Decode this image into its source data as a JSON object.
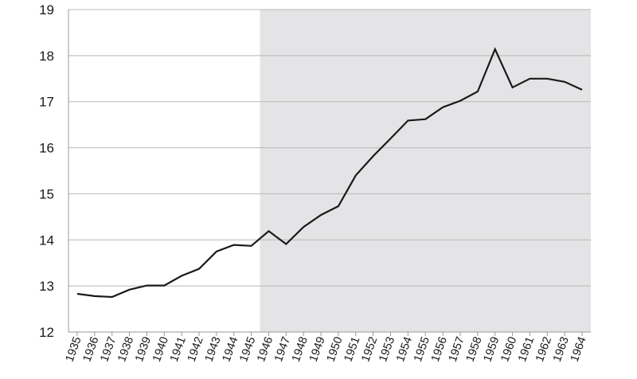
{
  "chart_data": {
    "type": "line",
    "title": "",
    "xlabel": "",
    "ylabel": "",
    "ylim": [
      12,
      19
    ],
    "yticks": [
      12,
      13,
      14,
      15,
      16,
      17,
      18,
      19
    ],
    "grid": "horizontal",
    "shaded_region": {
      "from": "1946",
      "to": "1964",
      "color": "#e4e4e6"
    },
    "line_color": "#1a1a1a",
    "categories": [
      "1935",
      "1936",
      "1937",
      "1938",
      "1939",
      "1940",
      "1941",
      "1942",
      "1943",
      "1944",
      "1945",
      "1946",
      "1947",
      "1948",
      "1949",
      "1950",
      "1951",
      "1952",
      "1953",
      "1954",
      "1955",
      "1956",
      "1957",
      "1958",
      "1959",
      "1960",
      "1961",
      "1962",
      "1963",
      "1964"
    ],
    "series": [
      {
        "values": [
          12.83,
          12.78,
          12.76,
          12.92,
          13.01,
          13.01,
          13.22,
          13.37,
          13.75,
          13.89,
          13.87,
          14.19,
          13.91,
          14.28,
          14.54,
          14.73,
          15.4,
          15.82,
          16.2,
          16.59,
          16.62,
          16.88,
          17.02,
          17.22,
          18.14,
          17.31,
          17.5,
          17.5,
          17.43,
          17.26
        ]
      }
    ]
  }
}
